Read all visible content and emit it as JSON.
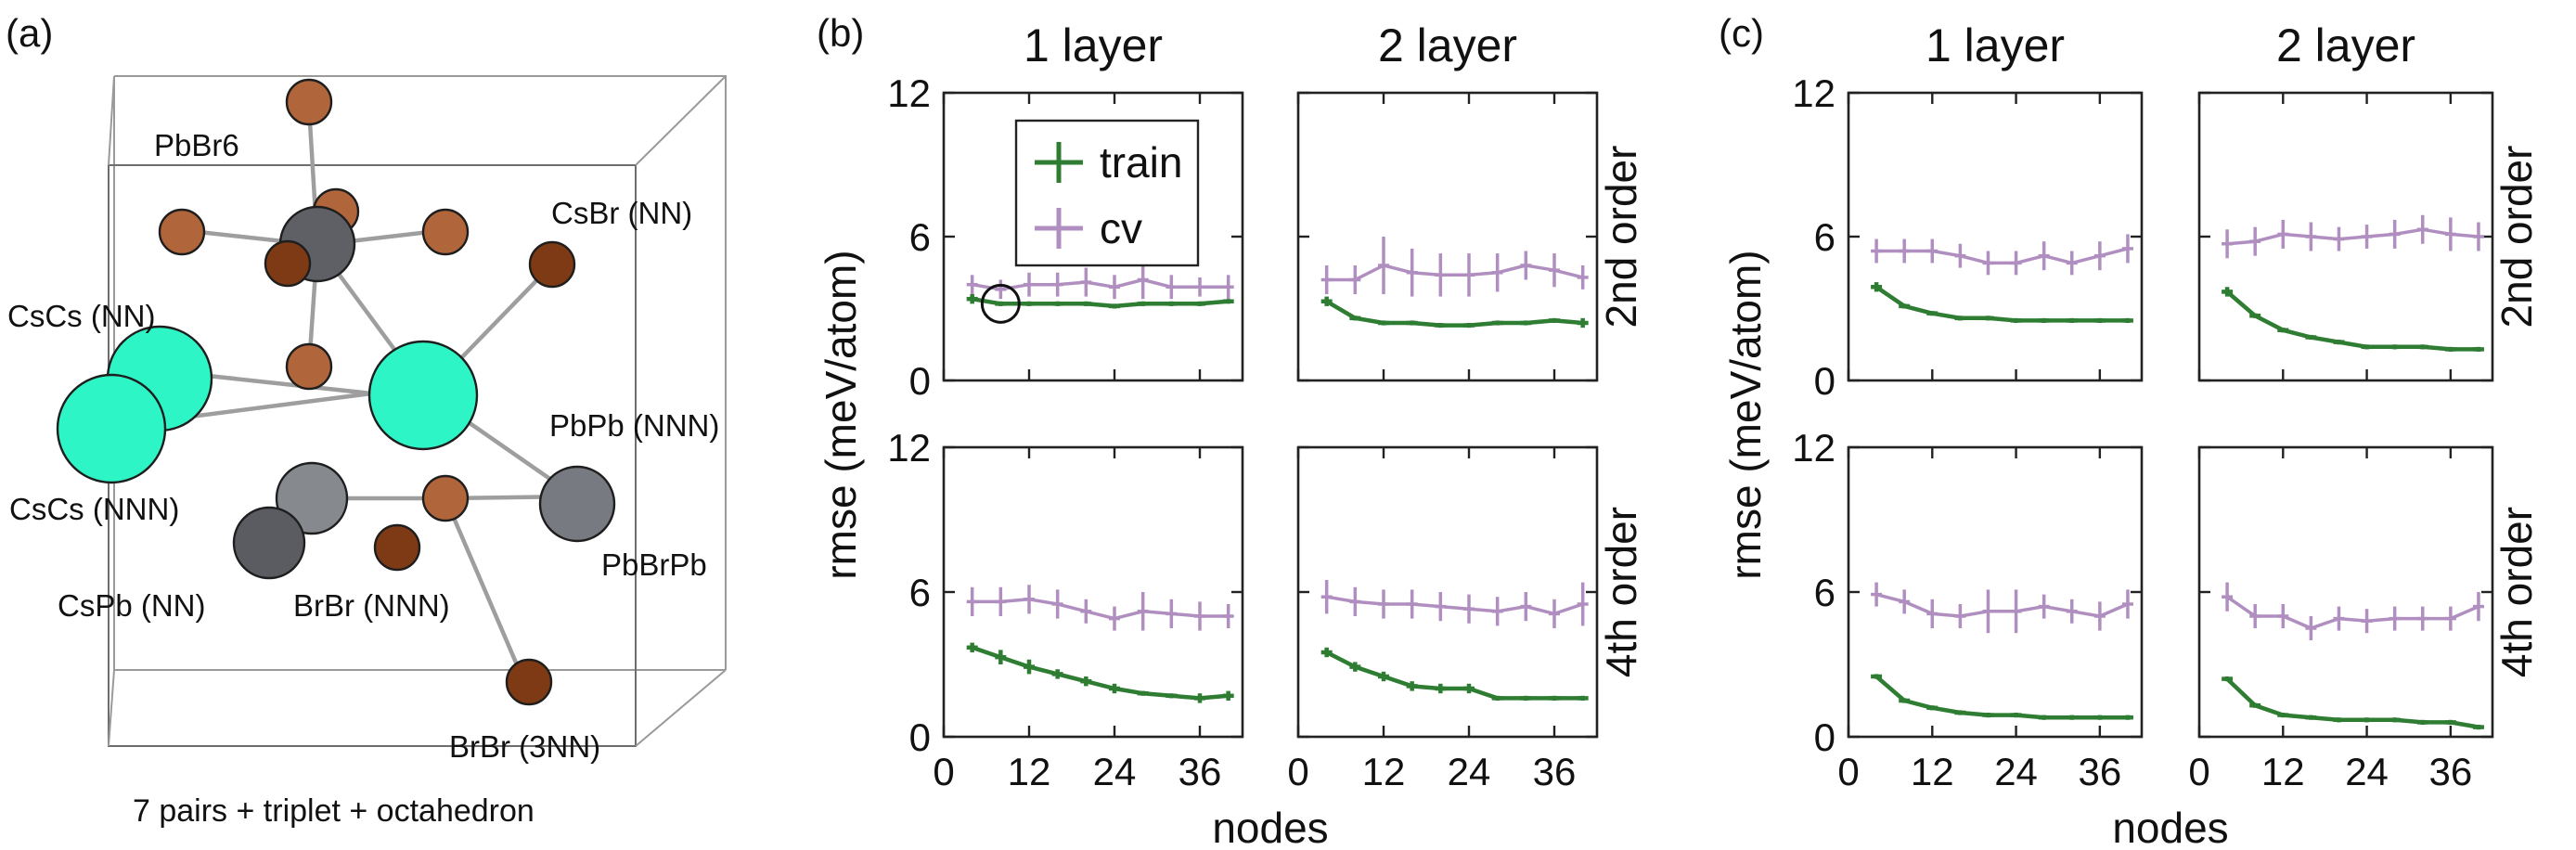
{
  "panel_labels": {
    "a": "(a)",
    "b": "(b)",
    "c": "(c)"
  },
  "structure": {
    "caption": "7 pairs + triplet + octahedron",
    "labels": {
      "pbbr6": "PbBr6",
      "csbr_nn": "CsBr (NN)",
      "cscs_nn": "CsCs (NN)",
      "pbpb_nnn": "PbPb (NNN)",
      "cscs_nnn": "CsCs (NNN)",
      "pbbrpb": "PbBrPb",
      "cspb_nn": "CsPb (NN)",
      "brbr_nnn": "BrBr (NNN)",
      "brbr_3nn": "BrBr (3NN)"
    },
    "colors": {
      "cs": "#2ef5c6",
      "pb": "#777a80",
      "pb_dark": "#5a5c62",
      "br": "#b0653a",
      "br_dark": "#7e3a14"
    }
  },
  "colors": {
    "train": "#2e7d32",
    "cv": "#b08fc0"
  },
  "legend": {
    "train": "train",
    "cv": "cv"
  },
  "chart_data": [
    {
      "id": "b",
      "type": "line",
      "column_titles": [
        "1 layer",
        "2 layer"
      ],
      "row_labels": [
        "2nd order",
        "4th order"
      ],
      "xlabel": "nodes",
      "ylabel": "rmse (meV/atom)",
      "xlim": [
        0,
        42
      ],
      "ylim": [
        0,
        12
      ],
      "xticks": [
        "0",
        "12",
        "24",
        "36"
      ],
      "yticks": [
        "0",
        "6",
        "12"
      ],
      "x": [
        4,
        8,
        12,
        16,
        20,
        24,
        28,
        32,
        36,
        40
      ],
      "subplots": [
        {
          "row": 0,
          "col": 0,
          "highlight_x": 8,
          "train": [
            3.4,
            3.2,
            3.2,
            3.2,
            3.2,
            3.1,
            3.2,
            3.2,
            3.2,
            3.3
          ],
          "train_err": [
            0.2,
            0.1,
            0.1,
            0.1,
            0.1,
            0.1,
            0.1,
            0.1,
            0.1,
            0.1
          ],
          "cv": [
            4.0,
            3.8,
            4.0,
            4.0,
            4.1,
            3.9,
            4.2,
            3.9,
            3.9,
            3.9
          ],
          "cv_err": [
            0.4,
            0.4,
            0.5,
            0.5,
            0.6,
            0.5,
            0.8,
            0.5,
            0.4,
            0.5
          ]
        },
        {
          "row": 0,
          "col": 1,
          "train": [
            3.3,
            2.6,
            2.4,
            2.4,
            2.3,
            2.3,
            2.4,
            2.4,
            2.5,
            2.4
          ],
          "train_err": [
            0.2,
            0.1,
            0.1,
            0.1,
            0.1,
            0.1,
            0.1,
            0.1,
            0.1,
            0.2
          ],
          "cv": [
            4.2,
            4.2,
            4.8,
            4.5,
            4.4,
            4.4,
            4.5,
            4.8,
            4.6,
            4.3
          ],
          "cv_err": [
            0.6,
            0.6,
            1.2,
            1.0,
            0.9,
            0.9,
            0.8,
            0.6,
            0.7,
            0.5
          ]
        },
        {
          "row": 1,
          "col": 0,
          "train": [
            3.7,
            3.3,
            2.9,
            2.6,
            2.3,
            2.0,
            1.8,
            1.7,
            1.6,
            1.7
          ],
          "train_err": [
            0.2,
            0.3,
            0.3,
            0.2,
            0.2,
            0.2,
            0.1,
            0.1,
            0.2,
            0.2
          ],
          "cv": [
            5.6,
            5.6,
            5.7,
            5.5,
            5.2,
            4.9,
            5.2,
            5.1,
            5.0,
            5.0
          ],
          "cv_err": [
            0.6,
            0.6,
            0.6,
            0.6,
            0.5,
            0.5,
            0.8,
            0.6,
            0.6,
            0.5
          ]
        },
        {
          "row": 1,
          "col": 1,
          "train": [
            3.5,
            2.9,
            2.5,
            2.1,
            2.0,
            2.0,
            1.6,
            1.6,
            1.6,
            1.6
          ],
          "train_err": [
            0.2,
            0.2,
            0.2,
            0.2,
            0.2,
            0.2,
            0.1,
            0.1,
            0.1,
            0.1
          ],
          "cv": [
            5.8,
            5.6,
            5.5,
            5.5,
            5.4,
            5.3,
            5.2,
            5.4,
            5.1,
            5.5
          ],
          "cv_err": [
            0.7,
            0.6,
            0.6,
            0.6,
            0.6,
            0.6,
            0.6,
            0.6,
            0.6,
            0.9
          ]
        }
      ]
    },
    {
      "id": "c",
      "type": "line",
      "column_titles": [
        "1 layer",
        "2 layer"
      ],
      "row_labels": [
        "2nd order",
        "4th order"
      ],
      "xlabel": "nodes",
      "ylabel": "rmse (meV/atom)",
      "xlim": [
        0,
        42
      ],
      "ylim": [
        0,
        12
      ],
      "xticks": [
        "0",
        "12",
        "24",
        "36"
      ],
      "yticks": [
        "0",
        "6",
        "12"
      ],
      "x": [
        4,
        8,
        12,
        16,
        20,
        24,
        28,
        32,
        36,
        40
      ],
      "subplots": [
        {
          "row": 0,
          "col": 0,
          "train": [
            3.9,
            3.1,
            2.8,
            2.6,
            2.6,
            2.5,
            2.5,
            2.5,
            2.5,
            2.5
          ],
          "train_err": [
            0.2,
            0.1,
            0.1,
            0.1,
            0.1,
            0.1,
            0.1,
            0.1,
            0.1,
            0.1
          ],
          "cv": [
            5.4,
            5.4,
            5.4,
            5.2,
            4.9,
            4.9,
            5.2,
            4.9,
            5.2,
            5.5
          ],
          "cv_err": [
            0.5,
            0.5,
            0.5,
            0.5,
            0.5,
            0.5,
            0.6,
            0.5,
            0.6,
            0.6
          ]
        },
        {
          "row": 0,
          "col": 1,
          "train": [
            3.7,
            2.7,
            2.1,
            1.8,
            1.6,
            1.4,
            1.4,
            1.4,
            1.3,
            1.3
          ],
          "train_err": [
            0.2,
            0.1,
            0.1,
            0.1,
            0.1,
            0.1,
            0.1,
            0.1,
            0.1,
            0.1
          ],
          "cv": [
            5.7,
            5.8,
            6.1,
            6.0,
            5.9,
            6.0,
            6.1,
            6.3,
            6.1,
            6.0
          ],
          "cv_err": [
            0.6,
            0.6,
            0.6,
            0.6,
            0.5,
            0.5,
            0.6,
            0.6,
            0.7,
            0.6
          ]
        },
        {
          "row": 1,
          "col": 0,
          "train": [
            2.5,
            1.5,
            1.2,
            1.0,
            0.9,
            0.9,
            0.8,
            0.8,
            0.8,
            0.8
          ],
          "train_err": [
            0.1,
            0.1,
            0.1,
            0.1,
            0.1,
            0.1,
            0.1,
            0.1,
            0.1,
            0.1
          ],
          "cv": [
            5.9,
            5.6,
            5.1,
            5.0,
            5.2,
            5.2,
            5.4,
            5.2,
            5.0,
            5.5
          ],
          "cv_err": [
            0.5,
            0.5,
            0.6,
            0.5,
            0.9,
            0.9,
            0.5,
            0.5,
            0.6,
            0.6
          ]
        },
        {
          "row": 1,
          "col": 1,
          "train": [
            2.4,
            1.3,
            0.9,
            0.8,
            0.7,
            0.7,
            0.7,
            0.6,
            0.6,
            0.4
          ],
          "train_err": [
            0.1,
            0.1,
            0.1,
            0.1,
            0.1,
            0.1,
            0.1,
            0.1,
            0.1,
            0.1
          ],
          "cv": [
            5.8,
            5.0,
            5.0,
            4.5,
            4.9,
            4.8,
            4.9,
            4.9,
            4.9,
            5.4
          ],
          "cv_err": [
            0.6,
            0.5,
            0.5,
            0.5,
            0.5,
            0.5,
            0.5,
            0.5,
            0.5,
            0.6
          ]
        }
      ]
    }
  ]
}
